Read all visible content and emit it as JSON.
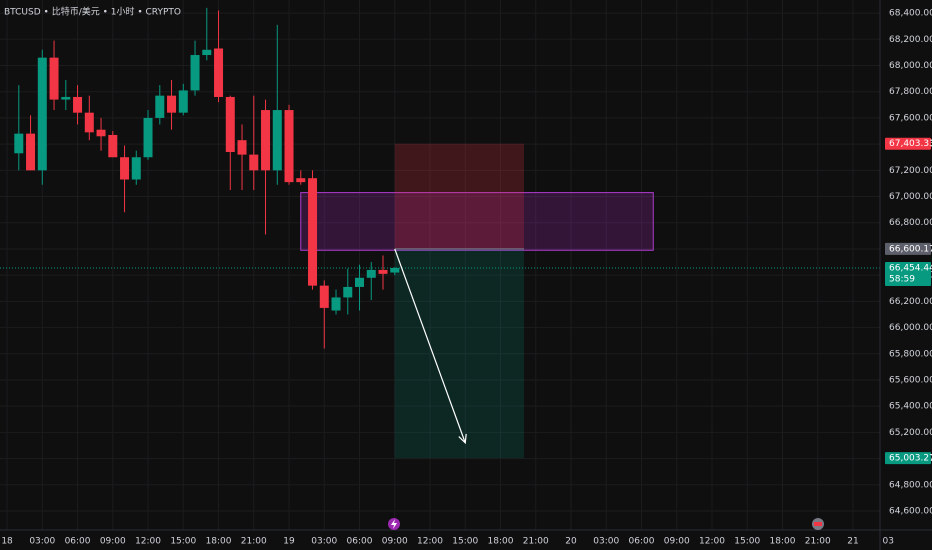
{
  "chart_data": {
    "type": "candlestick",
    "title": "BTCUSD • 比特币/美元 • 1小时 • CRYPTO",
    "up_color": "#089981",
    "down_color": "#f23645",
    "x": [
      1,
      2,
      3,
      4,
      5,
      6,
      7,
      8,
      9,
      10,
      11,
      12,
      13,
      14,
      15,
      16,
      17,
      18,
      19,
      20,
      21,
      22,
      23,
      24,
      25,
      26,
      27,
      28,
      29,
      30,
      31,
      32,
      33
    ],
    "open": [
      67330,
      67480,
      67200,
      68060,
      67740,
      67760,
      67640,
      67510,
      67470,
      67300,
      67130,
      67300,
      67600,
      67770,
      67640,
      67810,
      68080,
      68130,
      67760,
      67430,
      67320,
      67660,
      67200,
      67660,
      67140,
      67140,
      66320,
      66130,
      66230,
      66310,
      66380,
      66440,
      66420
    ],
    "high": [
      67850,
      67620,
      68120,
      68190,
      67890,
      67850,
      67770,
      67600,
      67500,
      67390,
      67350,
      67660,
      67850,
      67890,
      67860,
      68190,
      68440,
      68420,
      67770,
      67550,
      67770,
      67740,
      68310,
      67700,
      67200,
      67200,
      66360,
      66290,
      66450,
      66480,
      66500,
      66550,
      66460
    ],
    "low": [
      67200,
      67200,
      67090,
      67660,
      67660,
      67550,
      67430,
      67350,
      67300,
      66880,
      67090,
      67280,
      67550,
      67510,
      67620,
      67770,
      68040,
      67720,
      67050,
      67050,
      67050,
      66710,
      67090,
      67090,
      67090,
      66290,
      65840,
      66100,
      66100,
      66130,
      66210,
      66290,
      66400
    ],
    "close": [
      67480,
      67200,
      68060,
      67740,
      67760,
      67640,
      67490,
      67460,
      67300,
      67130,
      67300,
      67600,
      67770,
      67640,
      67810,
      68080,
      68120,
      67760,
      67340,
      67320,
      67200,
      67200,
      67660,
      67110,
      67110,
      66320,
      66150,
      66230,
      66310,
      66380,
      66440,
      66410,
      66454.44
    ],
    "xlim": [
      -0.6,
      74.3
    ],
    "xticks": [
      {
        "value": 0,
        "label": "18"
      },
      {
        "value": 3,
        "label": "03:00"
      },
      {
        "value": 6,
        "label": "06:00"
      },
      {
        "value": 9,
        "label": "09:00"
      },
      {
        "value": 12,
        "label": "12:00"
      },
      {
        "value": 15,
        "label": "15:00"
      },
      {
        "value": 18,
        "label": "18:00"
      },
      {
        "value": 21,
        "label": "21:00"
      },
      {
        "value": 24,
        "label": "19"
      },
      {
        "value": 27,
        "label": "03:00"
      },
      {
        "value": 30,
        "label": "06:00"
      },
      {
        "value": 33,
        "label": "09:00"
      },
      {
        "value": 36,
        "label": "12:00"
      },
      {
        "value": 39,
        "label": "15:00"
      },
      {
        "value": 42,
        "label": "18:00"
      },
      {
        "value": 45,
        "label": "21:00"
      },
      {
        "value": 48,
        "label": "20"
      },
      {
        "value": 51,
        "label": "03:00"
      },
      {
        "value": 54,
        "label": "06:00"
      },
      {
        "value": 57,
        "label": "09:00"
      },
      {
        "value": 60,
        "label": "12:00"
      },
      {
        "value": 63,
        "label": "15:00"
      },
      {
        "value": 66,
        "label": "18:00"
      },
      {
        "value": 69,
        "label": "21:00"
      },
      {
        "value": 72,
        "label": "21"
      },
      {
        "value": 75,
        "label": "03"
      }
    ],
    "ylim": [
      64455,
      68500
    ],
    "yticks": [
      {
        "value": 64600,
        "label": "64,600.00"
      },
      {
        "value": 64800,
        "label": "64,800.00"
      },
      {
        "value": 65000,
        "label": "65,000.00"
      },
      {
        "value": 65200,
        "label": "65,200.00"
      },
      {
        "value": 65400,
        "label": "65,400.00"
      },
      {
        "value": 65600,
        "label": "65,600.00"
      },
      {
        "value": 65800,
        "label": "65,800.00"
      },
      {
        "value": 66000,
        "label": "66,000.00"
      },
      {
        "value": 66200,
        "label": "66,200.00"
      },
      {
        "value": 66400,
        "label": "66,400.00"
      },
      {
        "value": 66600,
        "label": "66,600.00"
      },
      {
        "value": 66800,
        "label": "66,800.00"
      },
      {
        "value": 67000,
        "label": "67,000.00"
      },
      {
        "value": 67200,
        "label": "67,200.00"
      },
      {
        "value": 67400,
        "label": "67,400.00"
      },
      {
        "value": 67600,
        "label": "67,600.00"
      },
      {
        "value": 67800,
        "label": "67,800.00"
      },
      {
        "value": 68000,
        "label": "68,000.00"
      },
      {
        "value": 68200,
        "label": "68,200.00"
      },
      {
        "value": 68400,
        "label": "68,400.00"
      }
    ],
    "grid": true,
    "price_labels": [
      {
        "value": 67403.33,
        "label": "67,403.33",
        "color": "#f23645"
      },
      {
        "value": 66600.17,
        "label": "66,600.17",
        "color": "#5d606b"
      },
      {
        "value": 66454.44,
        "label": "66,454.44",
        "color": "#089981",
        "sub": "58:59"
      },
      {
        "value": 65003.27,
        "label": "65,003.27",
        "color": "#089981"
      }
    ],
    "position": {
      "start": 33,
      "end": 44
    },
    "zone": {
      "start": 25,
      "end": 55,
      "top": 67030,
      "bottom": 66590
    },
    "arrow": {
      "end_x": 39,
      "end_y": 65120
    }
  }
}
